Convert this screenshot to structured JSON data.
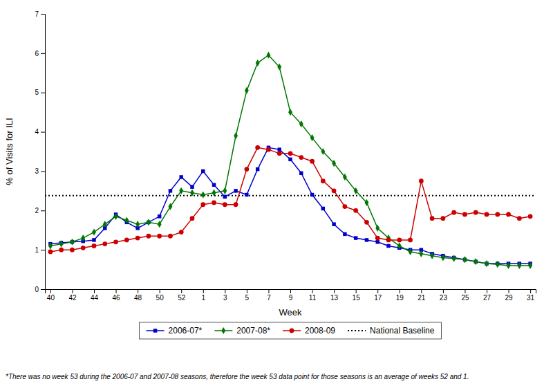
{
  "chart_data": {
    "type": "line",
    "xlabel": "Week",
    "ylabel": "% of Visits for ILI",
    "categories": [
      "40",
      null,
      "42",
      null,
      "44",
      null,
      "46",
      null,
      "48",
      null,
      "50",
      null,
      "52",
      null,
      "1",
      null,
      "3",
      null,
      "5",
      null,
      "7",
      null,
      "9",
      null,
      "11",
      null,
      "13",
      null,
      "15",
      null,
      "17",
      null,
      "19",
      null,
      "21",
      null,
      "23",
      null,
      "25",
      null,
      "27",
      null,
      "29",
      null,
      "31"
    ],
    "series": [
      {
        "name": "2006-07*",
        "color": "#0000CC",
        "marker": "square",
        "line_style": "solid",
        "values": [
          1.15,
          1.18,
          1.2,
          1.22,
          1.25,
          1.55,
          1.9,
          1.7,
          1.55,
          1.7,
          1.85,
          2.5,
          2.85,
          2.6,
          3.0,
          2.65,
          2.35,
          2.5,
          2.4,
          3.05,
          3.6,
          3.55,
          3.3,
          2.95,
          2.4,
          2.05,
          1.65,
          1.4,
          1.3,
          1.25,
          1.2,
          1.1,
          1.05,
          1.0,
          1.0,
          0.9,
          0.85,
          0.8,
          0.75,
          0.7,
          0.65,
          0.65,
          0.65,
          0.65,
          0.65
        ]
      },
      {
        "name": "2007-08*",
        "color": "#007700",
        "marker": "diamond",
        "line_style": "solid",
        "values": [
          1.1,
          1.15,
          1.2,
          1.3,
          1.45,
          1.65,
          1.85,
          1.75,
          1.65,
          1.7,
          1.65,
          2.1,
          2.5,
          2.45,
          2.4,
          2.45,
          2.5,
          3.9,
          5.05,
          5.75,
          5.95,
          5.65,
          4.5,
          4.2,
          3.85,
          3.5,
          3.2,
          2.85,
          2.5,
          2.2,
          1.55,
          1.3,
          1.1,
          0.95,
          0.9,
          0.85,
          0.8,
          0.78,
          0.75,
          0.7,
          0.65,
          0.63,
          0.6,
          0.6,
          0.6
        ]
      },
      {
        "name": "2008-09",
        "color": "#CC0000",
        "marker": "circle",
        "line_style": "solid",
        "values": [
          0.95,
          1.0,
          1.0,
          1.05,
          1.1,
          1.15,
          1.2,
          1.25,
          1.3,
          1.35,
          1.35,
          1.35,
          1.45,
          1.8,
          2.15,
          2.2,
          2.15,
          2.15,
          3.05,
          3.6,
          3.55,
          3.45,
          3.45,
          3.35,
          3.25,
          2.75,
          2.5,
          2.1,
          2.0,
          1.7,
          1.3,
          1.25,
          1.25,
          1.25,
          2.75,
          1.8,
          1.8,
          1.95,
          1.9,
          1.95,
          1.9,
          1.9,
          1.9,
          1.8,
          1.85
        ]
      }
    ],
    "reference_lines": [
      {
        "name": "National Baseline",
        "value": 2.38,
        "color": "#000000",
        "line_style": "dotted"
      }
    ],
    "ylim": [
      0,
      7
    ],
    "yticks": [
      0,
      1,
      2,
      3,
      4,
      5,
      6,
      7
    ],
    "grid": false,
    "legend": "bottom",
    "footnote": "*There was no week 53 during the 2006-07 and 2007-08 seasons, therefore the week 53 data point for those seasons is an average of weeks 52 and 1."
  }
}
